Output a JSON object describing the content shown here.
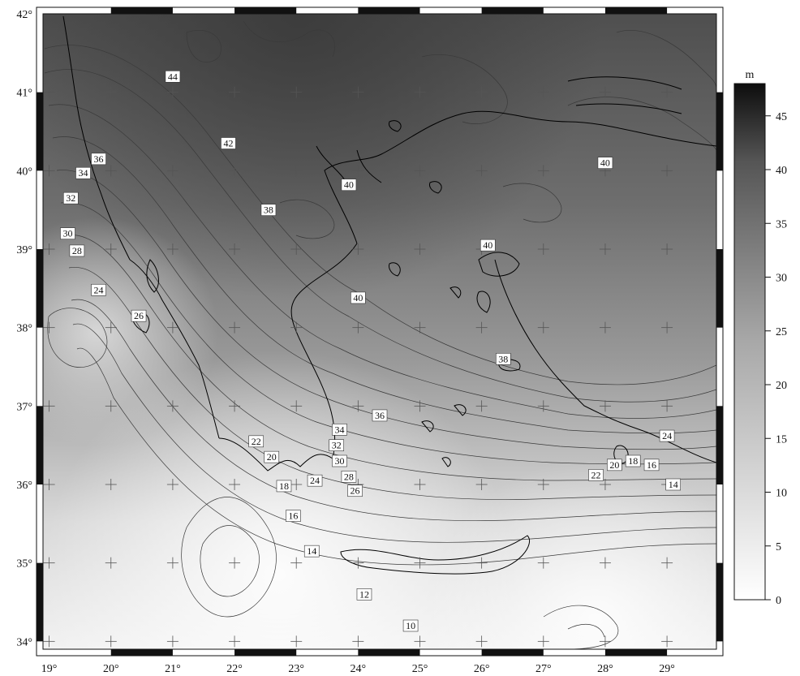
{
  "map": {
    "lon_ticks": [
      "19°",
      "20°",
      "21°",
      "22°",
      "23°",
      "24°",
      "25°",
      "26°",
      "27°",
      "28°",
      "29°"
    ],
    "lat_ticks": [
      "42°",
      "41°",
      "40°",
      "39°",
      "38°",
      "37°",
      "36°",
      "35°",
      "34°"
    ],
    "lon_range": [
      18.9,
      29.8
    ],
    "lat_range": [
      33.9,
      42.0
    ],
    "contour_interval_m": 1,
    "contour_labels": [
      {
        "text": "44",
        "lon": 21.0,
        "lat": 41.2
      },
      {
        "text": "42",
        "lon": 21.9,
        "lat": 40.35
      },
      {
        "text": "40",
        "lon": 23.85,
        "lat": 39.82
      },
      {
        "text": "40",
        "lon": 28.0,
        "lat": 40.1
      },
      {
        "text": "38",
        "lon": 22.55,
        "lat": 39.5
      },
      {
        "text": "40",
        "lon": 26.1,
        "lat": 39.05
      },
      {
        "text": "40",
        "lon": 24.0,
        "lat": 38.38
      },
      {
        "text": "38",
        "lon": 26.35,
        "lat": 37.6
      },
      {
        "text": "36",
        "lon": 19.8,
        "lat": 40.15
      },
      {
        "text": "34",
        "lon": 19.55,
        "lat": 39.97
      },
      {
        "text": "32",
        "lon": 19.35,
        "lat": 39.65
      },
      {
        "text": "30",
        "lon": 19.3,
        "lat": 39.2
      },
      {
        "text": "28",
        "lon": 19.45,
        "lat": 38.98
      },
      {
        "text": "24",
        "lon": 19.8,
        "lat": 38.48
      },
      {
        "text": "26",
        "lon": 20.45,
        "lat": 38.15
      },
      {
        "text": "36",
        "lon": 24.35,
        "lat": 36.88
      },
      {
        "text": "34",
        "lon": 23.7,
        "lat": 36.7
      },
      {
        "text": "32",
        "lon": 23.65,
        "lat": 36.5
      },
      {
        "text": "30",
        "lon": 23.7,
        "lat": 36.3
      },
      {
        "text": "28",
        "lon": 23.85,
        "lat": 36.1
      },
      {
        "text": "26",
        "lon": 23.95,
        "lat": 35.92
      },
      {
        "text": "24",
        "lon": 23.3,
        "lat": 36.05
      },
      {
        "text": "22",
        "lon": 22.35,
        "lat": 36.55
      },
      {
        "text": "20",
        "lon": 22.6,
        "lat": 36.35
      },
      {
        "text": "18",
        "lon": 22.8,
        "lat": 35.98
      },
      {
        "text": "16",
        "lon": 22.95,
        "lat": 35.6
      },
      {
        "text": "14",
        "lon": 23.25,
        "lat": 35.15
      },
      {
        "text": "12",
        "lon": 24.1,
        "lat": 34.6
      },
      {
        "text": "10",
        "lon": 24.85,
        "lat": 34.2
      },
      {
        "text": "22",
        "lon": 27.85,
        "lat": 36.12
      },
      {
        "text": "20",
        "lon": 28.15,
        "lat": 36.25
      },
      {
        "text": "18",
        "lon": 28.45,
        "lat": 36.3
      },
      {
        "text": "16",
        "lon": 28.75,
        "lat": 36.25
      },
      {
        "text": "14",
        "lon": 29.1,
        "lat": 36.0
      },
      {
        "text": "24",
        "lon": 29.0,
        "lat": 36.62
      }
    ]
  },
  "colorbar": {
    "unit": "m",
    "ticks": [
      "0",
      "5",
      "10",
      "15",
      "20",
      "25",
      "30",
      "35",
      "40",
      "45"
    ],
    "range": [
      0,
      48
    ],
    "color_light": "#ffffff",
    "color_mid": "#9a9a9a",
    "color_dark": "#0d0d0d"
  },
  "colors": {
    "frame": "#111111",
    "contour": "#3a3a3a",
    "coast": "#000000",
    "grid_cross": "#555555"
  }
}
